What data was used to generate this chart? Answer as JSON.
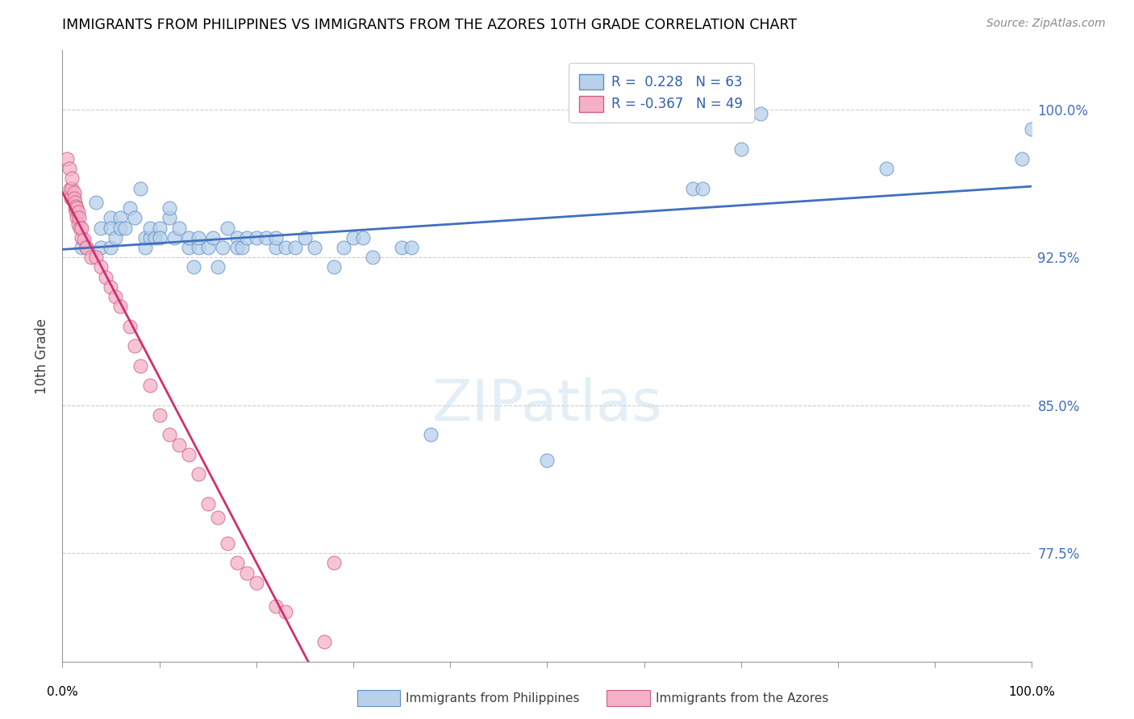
{
  "title": "IMMIGRANTS FROM PHILIPPINES VS IMMIGRANTS FROM THE AZORES 10TH GRADE CORRELATION CHART",
  "source": "Source: ZipAtlas.com",
  "ylabel": "10th Grade",
  "ytick_values": [
    0.775,
    0.85,
    0.925,
    1.0
  ],
  "ytick_labels": [
    "77.5%",
    "85.0%",
    "92.5%",
    "100.0%"
  ],
  "xlim": [
    0.0,
    1.0
  ],
  "ylim": [
    0.72,
    1.03
  ],
  "R_blue": 0.228,
  "N_blue": 63,
  "R_pink": -0.367,
  "N_pink": 49,
  "legend_label_blue": "Immigrants from Philippines",
  "legend_label_pink": "Immigrants from the Azores",
  "blue_fill": "#b8d0ea",
  "blue_edge": "#6090c8",
  "pink_fill": "#f4b0c8",
  "pink_edge": "#d06080",
  "trend_blue": "#4070c0",
  "trend_pink": "#d03070",
  "trend_gray": "#c0c0c0",
  "watermark": "ZIPatlas",
  "blue_x": [
    0.02,
    0.035,
    0.04,
    0.04,
    0.05,
    0.05,
    0.05,
    0.055,
    0.06,
    0.06,
    0.065,
    0.07,
    0.075,
    0.08,
    0.085,
    0.085,
    0.09,
    0.09,
    0.095,
    0.1,
    0.1,
    0.11,
    0.11,
    0.115,
    0.12,
    0.13,
    0.13,
    0.135,
    0.14,
    0.14,
    0.15,
    0.155,
    0.16,
    0.165,
    0.17,
    0.18,
    0.18,
    0.185,
    0.19,
    0.2,
    0.21,
    0.22,
    0.22,
    0.23,
    0.24,
    0.25,
    0.26,
    0.28,
    0.29,
    0.3,
    0.31,
    0.32,
    0.35,
    0.36,
    0.38,
    0.5,
    0.65,
    0.66,
    0.7,
    0.72,
    0.85,
    0.99,
    1.0
  ],
  "blue_y": [
    0.93,
    0.953,
    0.93,
    0.94,
    0.945,
    0.94,
    0.93,
    0.935,
    0.945,
    0.94,
    0.94,
    0.95,
    0.945,
    0.96,
    0.93,
    0.935,
    0.935,
    0.94,
    0.935,
    0.94,
    0.935,
    0.945,
    0.95,
    0.935,
    0.94,
    0.93,
    0.935,
    0.92,
    0.93,
    0.935,
    0.93,
    0.935,
    0.92,
    0.93,
    0.94,
    0.935,
    0.93,
    0.93,
    0.935,
    0.935,
    0.935,
    0.93,
    0.935,
    0.93,
    0.93,
    0.935,
    0.93,
    0.92,
    0.93,
    0.935,
    0.935,
    0.925,
    0.93,
    0.93,
    0.835,
    0.822,
    0.96,
    0.96,
    0.98,
    0.998,
    0.97,
    0.975,
    0.99
  ],
  "pink_x": [
    0.005,
    0.007,
    0.008,
    0.009,
    0.01,
    0.01,
    0.012,
    0.012,
    0.013,
    0.013,
    0.014,
    0.014,
    0.015,
    0.015,
    0.016,
    0.016,
    0.017,
    0.018,
    0.02,
    0.02,
    0.022,
    0.025,
    0.025,
    0.03,
    0.035,
    0.04,
    0.045,
    0.05,
    0.055,
    0.06,
    0.07,
    0.075,
    0.08,
    0.09,
    0.1,
    0.11,
    0.12,
    0.13,
    0.14,
    0.15,
    0.16,
    0.17,
    0.18,
    0.19,
    0.2,
    0.22,
    0.23,
    0.27,
    0.28
  ],
  "pink_y": [
    0.975,
    0.97,
    0.96,
    0.955,
    0.96,
    0.965,
    0.958,
    0.955,
    0.953,
    0.95,
    0.951,
    0.948,
    0.95,
    0.945,
    0.948,
    0.942,
    0.945,
    0.94,
    0.935,
    0.94,
    0.934,
    0.93,
    0.93,
    0.925,
    0.925,
    0.92,
    0.915,
    0.91,
    0.905,
    0.9,
    0.89,
    0.88,
    0.87,
    0.86,
    0.845,
    0.835,
    0.83,
    0.825,
    0.815,
    0.8,
    0.793,
    0.78,
    0.77,
    0.765,
    0.76,
    0.748,
    0.745,
    0.73,
    0.77
  ]
}
